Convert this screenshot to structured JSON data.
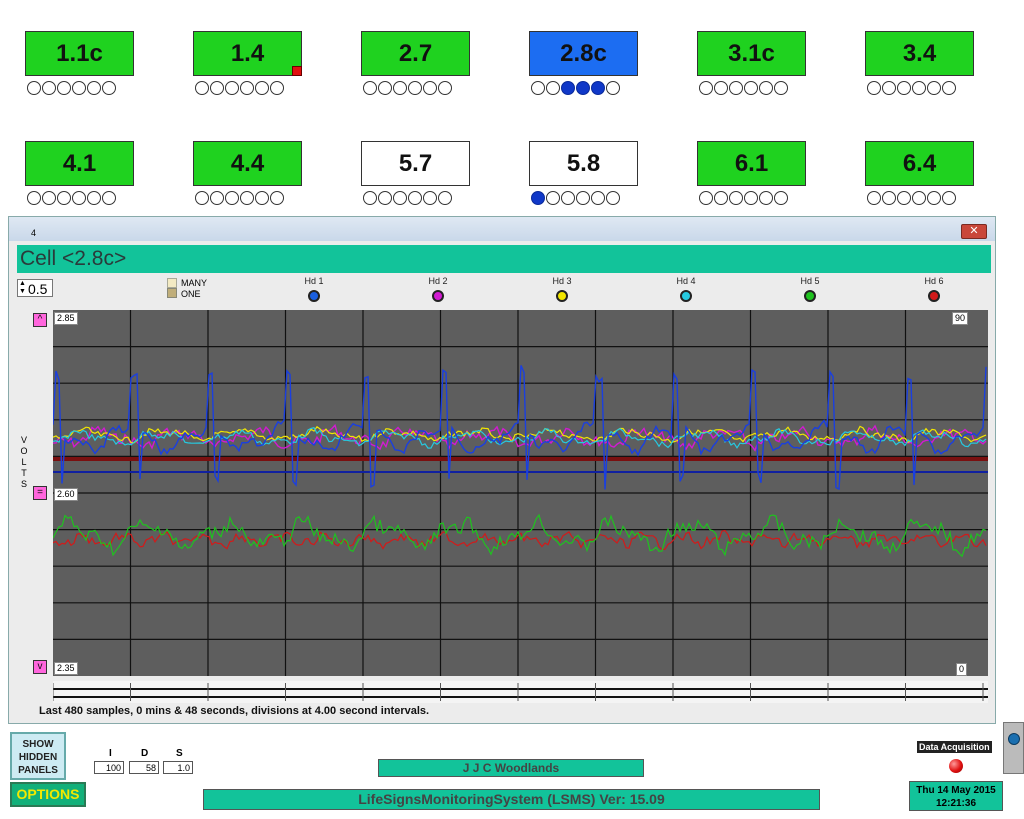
{
  "cells_row1": [
    {
      "label": "1.1c",
      "state": "green",
      "dots": [
        0,
        0,
        0,
        0,
        0,
        0
      ]
    },
    {
      "label": "1.4",
      "state": "green",
      "dots": [
        0,
        0,
        0,
        0,
        0,
        0
      ],
      "flag": true
    },
    {
      "label": "2.7",
      "state": "green",
      "dots": [
        0,
        0,
        0,
        0,
        0,
        0
      ]
    },
    {
      "label": "2.8c",
      "state": "blue",
      "dots": [
        0,
        0,
        1,
        1,
        1,
        0
      ]
    },
    {
      "label": "3.1c",
      "state": "green",
      "dots": [
        0,
        0,
        0,
        0,
        0,
        0
      ]
    },
    {
      "label": "3.4",
      "state": "green",
      "dots": [
        0,
        0,
        0,
        0,
        0,
        0
      ]
    }
  ],
  "cells_row2": [
    {
      "label": "4.1",
      "state": "green",
      "dots": [
        0,
        0,
        0,
        0,
        0,
        0
      ]
    },
    {
      "label": "4.4",
      "state": "green",
      "dots": [
        0,
        0,
        0,
        0,
        0,
        0
      ]
    },
    {
      "label": "5.7",
      "state": "white",
      "dots": [
        0,
        0,
        0,
        0,
        0,
        0
      ]
    },
    {
      "label": "5.8",
      "state": "white",
      "dots": [
        1,
        0,
        0,
        0,
        0,
        0
      ]
    },
    {
      "label": "6.1",
      "state": "green",
      "dots": [
        0,
        0,
        0,
        0,
        0,
        0
      ]
    },
    {
      "label": "6.4",
      "state": "green",
      "dots": [
        0,
        0,
        0,
        0,
        0,
        0
      ]
    }
  ],
  "window": {
    "title_num": "4",
    "close_icon": "close-icon",
    "cell_title": "Cell <2.8c>",
    "spinner_value": "0.5",
    "many_label": "MANY",
    "one_label": "ONE",
    "hd": [
      {
        "label": "Hd 1",
        "color": "#1a5fe0"
      },
      {
        "label": "Hd 2",
        "color": "#d21ad2"
      },
      {
        "label": "Hd 3",
        "color": "#f2e600"
      },
      {
        "label": "Hd 4",
        "color": "#26c9e0"
      },
      {
        "label": "Hd 5",
        "color": "#1fc21f"
      },
      {
        "label": "Hd 6",
        "color": "#d21a1a"
      }
    ],
    "up_btn": "^",
    "eq_btn": "=",
    "down_btn": "v",
    "y_top": "2.85",
    "y_mid": "2.60",
    "y_bot": "2.35",
    "right_top": "90",
    "right_bot": "0",
    "volts_label": "VOLTS",
    "status": "Last 480 samples, 0 mins & 48 seconds, divisions at  4.00 second intervals."
  },
  "bottom": {
    "show_hidden": "SHOW HIDDEN PANELS",
    "options": "OPTIONS",
    "i_label": "I",
    "d_label": "D",
    "s_label": "S",
    "i_value": "100",
    "d_value": "58",
    "s_value": "1.0",
    "site": "J J C Woodlands",
    "app_title": "LifeSignsMonitoringSystem (LSMS)  Ver: 15.09",
    "data_acq": "Data Acquisition",
    "date": "Thu 14 May 2015",
    "time": "12:21:36"
  },
  "colors": {
    "green": "#1fd21f",
    "blue": "#1c6df2",
    "teal": "#12c39a",
    "plot_bg": "#5e5e5e",
    "pink": "#ff66dd"
  }
}
